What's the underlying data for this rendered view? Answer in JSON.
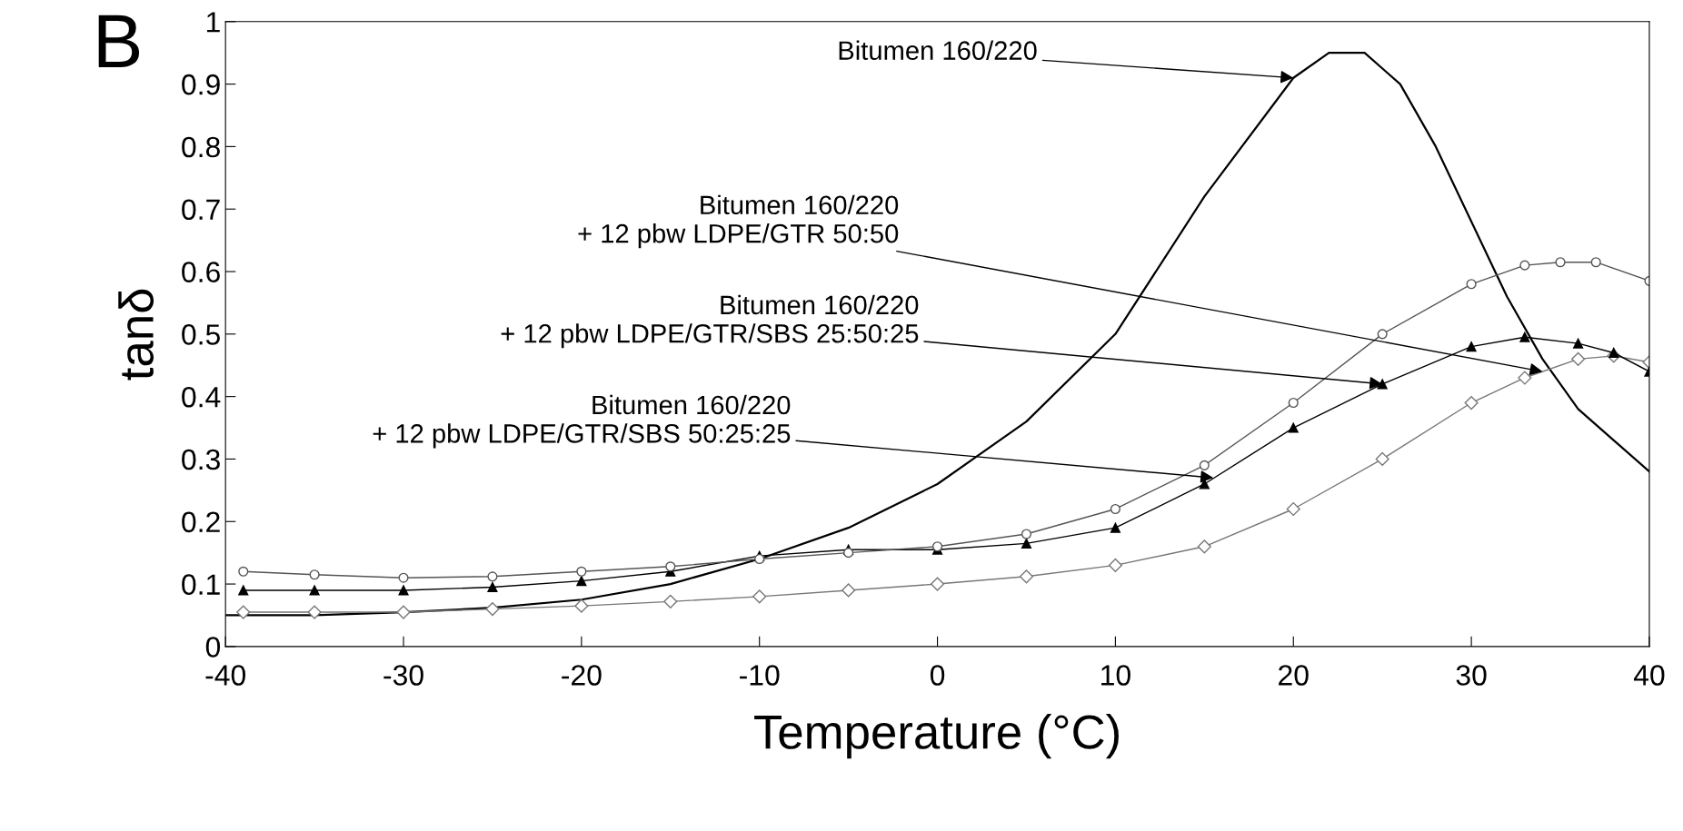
{
  "chart_data": {
    "type": "line",
    "xlabel": "Temperature (°C)",
    "ylabel": "tanδ",
    "xlim": [
      -40,
      40
    ],
    "xticks": [
      -40,
      -30,
      -20,
      -10,
      0,
      10,
      20,
      30,
      40
    ],
    "ylim": [
      0,
      1
    ],
    "yticks": [
      0,
      0.1,
      0.2,
      0.3,
      0.4,
      0.5,
      0.6,
      0.7,
      0.8,
      0.9,
      1
    ],
    "grid": false,
    "legend": false,
    "series": [
      {
        "color": "#000000",
        "marker": "none",
        "x": [
          -40,
          -35,
          -30,
          -25,
          -20,
          -15,
          -10,
          -5,
          0,
          5,
          10,
          15,
          20,
          22,
          24,
          26,
          28,
          30,
          32,
          34,
          36,
          38,
          40
        ],
        "values": [
          0.05,
          0.05,
          0.055,
          0.062,
          0.075,
          0.1,
          0.14,
          0.19,
          0.26,
          0.36,
          0.5,
          0.72,
          0.91,
          0.95,
          0.95,
          0.9,
          0.8,
          0.68,
          0.56,
          0.46,
          0.38,
          0.33,
          0.28
        ]
      },
      {
        "color": "#777777",
        "marker": "diamond",
        "x": [
          -39,
          -35,
          -30,
          -25,
          -20,
          -15,
          -10,
          -5,
          0,
          5,
          10,
          15,
          20,
          25,
          30,
          33,
          36,
          38,
          40
        ],
        "values": [
          0.055,
          0.055,
          0.055,
          0.06,
          0.065,
          0.072,
          0.08,
          0.09,
          0.1,
          0.112,
          0.13,
          0.16,
          0.22,
          0.3,
          0.39,
          0.43,
          0.46,
          0.465,
          0.455
        ]
      },
      {
        "color": "#000000",
        "marker": "triangle",
        "x": [
          -39,
          -35,
          -30,
          -25,
          -20,
          -15,
          -10,
          -5,
          0,
          5,
          10,
          15,
          20,
          25,
          30,
          33,
          36,
          38,
          40
        ],
        "values": [
          0.09,
          0.09,
          0.09,
          0.095,
          0.105,
          0.12,
          0.145,
          0.155,
          0.155,
          0.165,
          0.19,
          0.26,
          0.35,
          0.42,
          0.48,
          0.495,
          0.485,
          0.47,
          0.44
        ]
      },
      {
        "color": "#555555",
        "marker": "circle",
        "x": [
          -39,
          -35,
          -30,
          -25,
          -20,
          -15,
          -10,
          -5,
          0,
          5,
          10,
          15,
          20,
          25,
          30,
          33,
          35,
          37,
          40
        ],
        "values": [
          0.12,
          0.115,
          0.11,
          0.112,
          0.12,
          0.128,
          0.14,
          0.15,
          0.16,
          0.18,
          0.22,
          0.29,
          0.39,
          0.5,
          0.58,
          0.61,
          0.615,
          0.615,
          0.585
        ]
      }
    ],
    "annotations": [
      "B",
      {
        "text": "Bitumen 160/220",
        "x": 20,
        "y": 0.91
      },
      {
        "text": "Bitumen 160/220\n+ 12 pbw LDPE/GTR 50:50",
        "x": 34,
        "y": 0.44
      },
      {
        "text": "Bitumen 160/220\n+ 12 pbw LDPE/GTR/SBS 25:50:25",
        "x": 25,
        "y": 0.42
      },
      {
        "text": "Bitumen 160/220\n+ 12 pbw LDPE/GTR/SBS 50:25:25",
        "x": 15.5,
        "y": 0.27
      }
    ]
  }
}
